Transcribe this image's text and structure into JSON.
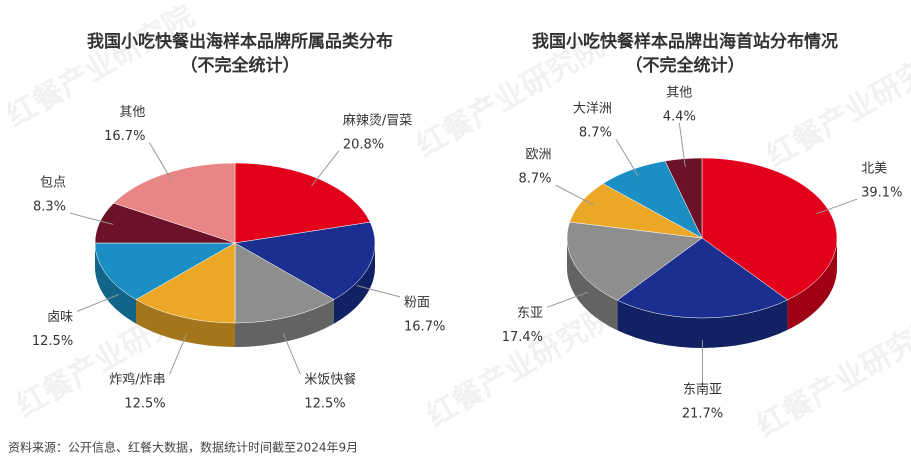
{
  "chart_data": [
    {
      "type": "pie3d",
      "title": "我国小吃快餐出海样本品牌所属品类分布",
      "subtitle": "（不完全统计）",
      "categories": [
        "麻辣烫/冒菜",
        "粉面",
        "米饭快餐",
        "炸鸡/炸串",
        "卤味",
        "包点",
        "其他"
      ],
      "values": [
        20.8,
        16.7,
        12.5,
        12.5,
        12.5,
        8.3,
        16.7
      ],
      "value_labels": [
        "20.8%",
        "16.7%",
        "12.5%",
        "12.5%",
        "12.5%",
        "8.3%",
        "16.7%"
      ],
      "colors": [
        "#e3001b",
        "#1a2f8f",
        "#8e8e8e",
        "#eaa826",
        "#1b8fc4",
        "#6b1228",
        "#e88585"
      ]
    },
    {
      "type": "pie3d",
      "title": "我国小吃快餐样本品牌出海首站分布情况",
      "subtitle": "（不完全统计）",
      "categories": [
        "北美",
        "东南亚",
        "东亚",
        "欧洲",
        "大洋洲",
        "其他"
      ],
      "values": [
        39.1,
        21.7,
        17.4,
        8.7,
        8.7,
        4.4
      ],
      "value_labels": [
        "39.1%",
        "21.7%",
        "17.4%",
        "8.7%",
        "8.7%",
        "4.4%"
      ],
      "colors": [
        "#e3001b",
        "#1a2f8f",
        "#8e8e8e",
        "#eaa826",
        "#1b8fc4",
        "#6b1228"
      ]
    }
  ],
  "watermark": "红餐产业研究院",
  "source": "资料来源：公开信息、红餐大数据，数据统计时间截至2024年9月"
}
